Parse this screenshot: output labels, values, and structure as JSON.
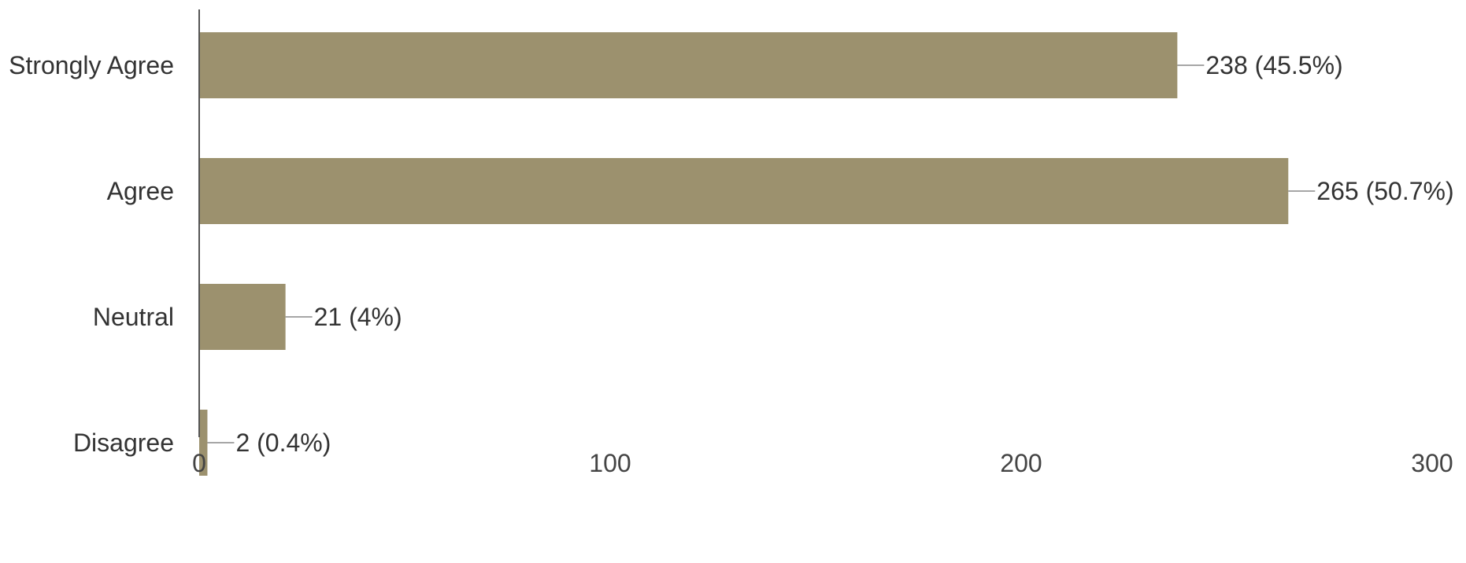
{
  "chart_data": {
    "type": "bar",
    "orientation": "horizontal",
    "title": "",
    "xlabel": "",
    "ylabel": "",
    "categories": [
      "Strongly Agree",
      "Agree",
      "Neutral",
      "Disagree"
    ],
    "values": [
      238,
      265,
      21,
      2
    ],
    "data_labels": [
      "238 (45.5%)",
      "265 (50.7%)",
      "21 (4%)",
      "2 (0.4%)"
    ],
    "xlim": [
      0,
      300
    ],
    "x_ticks": [
      0,
      100,
      200,
      300
    ],
    "x_tick_labels": [
      "0",
      "100",
      "200",
      "300"
    ],
    "grid": false,
    "legend": "none",
    "bar_color": "#9c916e",
    "leader_line_color": "#888888",
    "axis_color": "#555555"
  }
}
